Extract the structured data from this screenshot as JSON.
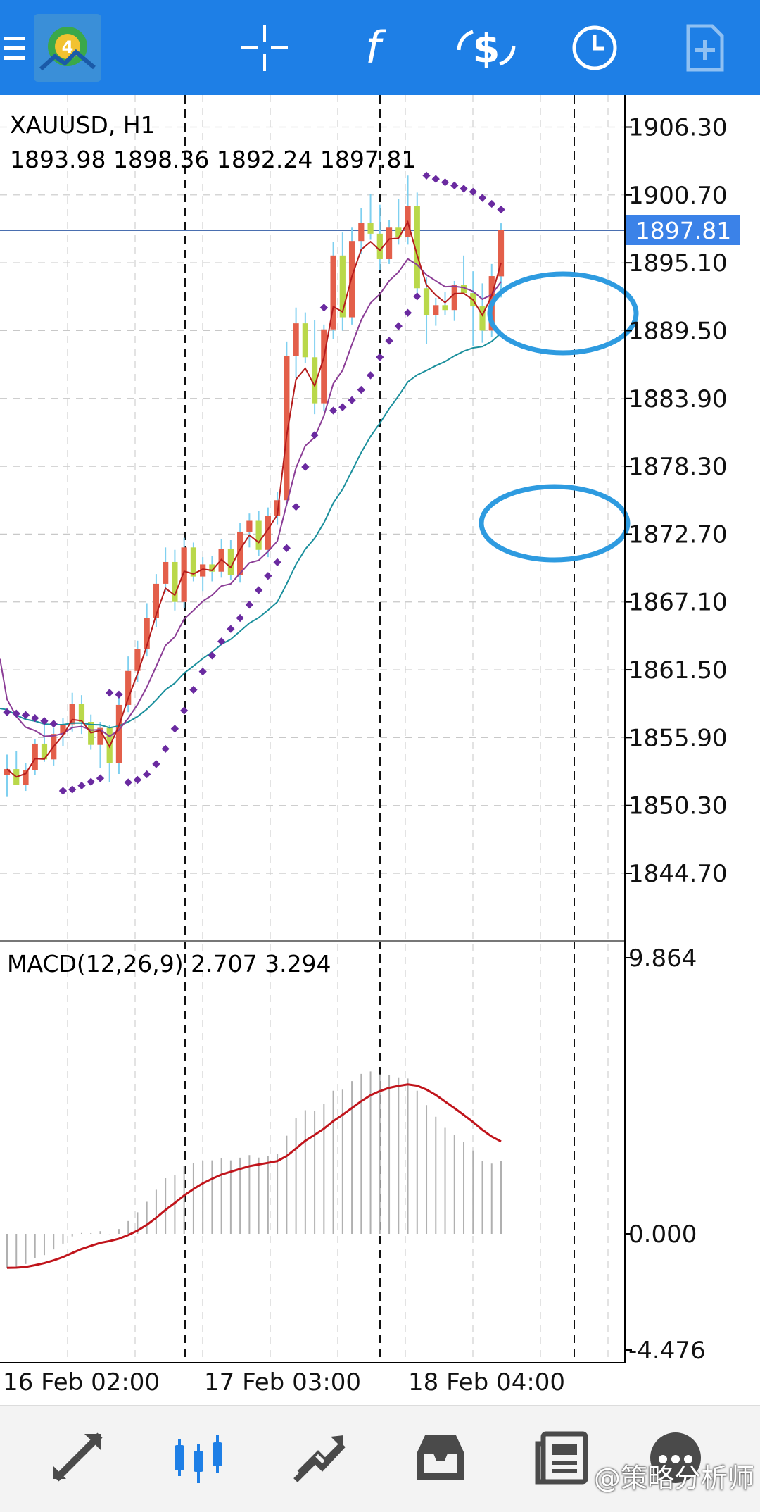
{
  "topbar": {
    "icons": [
      "menu-icon",
      "mt-app-logo",
      "crosshair-icon",
      "indicators-icon",
      "trade-icon",
      "period-clock-icon",
      "new-chart-icon"
    ],
    "accent": "#1e7fe6"
  },
  "chart": {
    "symbol_line": "XAUUSD, H1",
    "ohlc_line": "1893.98 1898.36 1892.24 1897.81",
    "current_price_label": "1897.81",
    "price_ticks": [
      "1906.30",
      "1900.70",
      "1895.10",
      "1889.50",
      "1883.90",
      "1878.30",
      "1872.70",
      "1867.10",
      "1861.50",
      "1855.90",
      "1850.30",
      "1844.70"
    ],
    "macd_label": "MACD(12,26,9) 2.707 3.294",
    "macd_ticks": [
      "9.864",
      "0.000",
      "-4.476"
    ],
    "time_ticks": [
      "16 Feb 02:00",
      "17 Feb 03:00",
      "18 Feb 04:00"
    ]
  },
  "chart_data": {
    "type": "candlestick",
    "symbol": "XAUUSD",
    "timeframe": "H1",
    "ylim": [
      1839.5,
      1910.5
    ],
    "candles": [
      [
        1852.8,
        1854.5,
        1851.0,
        1853.3
      ],
      [
        1853.3,
        1854.8,
        1852.4,
        1852.0
      ],
      [
        1852.0,
        1853.8,
        1851.5,
        1853.2
      ],
      [
        1853.2,
        1855.8,
        1852.8,
        1855.4
      ],
      [
        1855.4,
        1857.2,
        1853.9,
        1854.1
      ],
      [
        1854.1,
        1856.7,
        1853.6,
        1856.2
      ],
      [
        1856.2,
        1857.5,
        1855.2,
        1857.0
      ],
      [
        1857.0,
        1859.6,
        1856.4,
        1858.7
      ],
      [
        1858.7,
        1859.4,
        1856.2,
        1857.2
      ],
      [
        1857.2,
        1857.8,
        1854.9,
        1855.3
      ],
      [
        1855.3,
        1857.2,
        1853.4,
        1856.7
      ],
      [
        1856.7,
        1856.9,
        1852.2,
        1853.8
      ],
      [
        1853.8,
        1859.2,
        1852.9,
        1858.6
      ],
      [
        1858.6,
        1862.6,
        1858.0,
        1861.4
      ],
      [
        1861.4,
        1863.9,
        1860.5,
        1863.2
      ],
      [
        1863.2,
        1867.0,
        1862.6,
        1865.8
      ],
      [
        1865.8,
        1869.4,
        1865.0,
        1868.6
      ],
      [
        1868.6,
        1871.6,
        1867.9,
        1870.4
      ],
      [
        1870.4,
        1871.4,
        1866.4,
        1867.1
      ],
      [
        1867.1,
        1872.4,
        1866.6,
        1871.6
      ],
      [
        1871.6,
        1872.0,
        1868.8,
        1869.2
      ],
      [
        1869.2,
        1870.8,
        1868.0,
        1870.2
      ],
      [
        1870.2,
        1870.9,
        1868.8,
        1869.6
      ],
      [
        1869.6,
        1872.3,
        1869.1,
        1871.5
      ],
      [
        1871.5,
        1872.2,
        1868.9,
        1869.3
      ],
      [
        1869.3,
        1873.6,
        1868.7,
        1872.9
      ],
      [
        1872.9,
        1874.4,
        1871.6,
        1873.8
      ],
      [
        1873.8,
        1874.6,
        1870.9,
        1871.4
      ],
      [
        1871.4,
        1874.9,
        1870.8,
        1874.2
      ],
      [
        1874.2,
        1876.2,
        1873.5,
        1875.5
      ],
      [
        1875.5,
        1888.6,
        1875.0,
        1887.4
      ],
      [
        1887.4,
        1891.4,
        1885.6,
        1890.1
      ],
      [
        1890.1,
        1891.0,
        1886.8,
        1887.3
      ],
      [
        1887.3,
        1890.4,
        1882.6,
        1883.5
      ],
      [
        1883.5,
        1890.0,
        1882.9,
        1889.6
      ],
      [
        1889.6,
        1896.8,
        1888.8,
        1895.7
      ],
      [
        1895.7,
        1897.6,
        1889.5,
        1890.6
      ],
      [
        1890.6,
        1898.0,
        1890.0,
        1896.9
      ],
      [
        1896.9,
        1899.6,
        1895.8,
        1898.4
      ],
      [
        1898.4,
        1900.8,
        1897.0,
        1897.5
      ],
      [
        1897.5,
        1899.9,
        1894.5,
        1895.4
      ],
      [
        1895.4,
        1898.6,
        1895.0,
        1898.0
      ],
      [
        1898.0,
        1900.4,
        1896.6,
        1897.2
      ],
      [
        1897.2,
        1902.3,
        1896.6,
        1899.8
      ],
      [
        1899.8,
        1900.9,
        1892.4,
        1893.0
      ],
      [
        1893.0,
        1893.9,
        1888.4,
        1890.8
      ],
      [
        1890.8,
        1892.2,
        1889.9,
        1891.6
      ],
      [
        1891.6,
        1892.7,
        1890.8,
        1891.2
      ],
      [
        1891.2,
        1893.6,
        1890.3,
        1893.3
      ],
      [
        1893.3,
        1895.7,
        1892.5,
        1892.6
      ],
      [
        1892.6,
        1894.4,
        1888.2,
        1891.5
      ],
      [
        1891.5,
        1893.4,
        1888.5,
        1889.5
      ],
      [
        1889.5,
        1895.0,
        1889.0,
        1894.0
      ],
      [
        1893.98,
        1898.36,
        1892.24,
        1897.81
      ]
    ],
    "overlays": [
      {
        "name": "fast MA",
        "color": "#b51c1c"
      },
      {
        "name": "mid MA",
        "color": "#8b3d96"
      },
      {
        "name": "slow MA",
        "color": "#1a8f9c"
      },
      {
        "name": "Parabolic SAR",
        "color": "#6a2aa0"
      }
    ],
    "macd": {
      "label": "MACD(12,26,9)",
      "main": 2.707,
      "signal": 3.294,
      "ylim": [
        -4.476,
        9.864
      ]
    },
    "annotations": [
      "blue-ellipse-highlight",
      "blue-ellipse-highlight"
    ]
  },
  "bottombar": {
    "icons": [
      "quotes-icon",
      "chart-icon",
      "trade-icon",
      "history-icon",
      "news-icon",
      "more-icon"
    ],
    "watermark": "@策略分析师"
  }
}
